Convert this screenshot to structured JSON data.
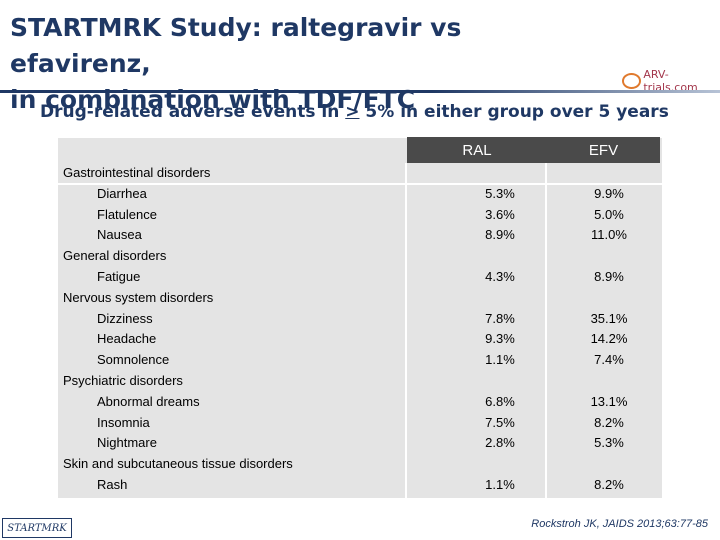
{
  "title_line1": "STARTMRK Study: raltegravir vs efavirenz,",
  "title_line2": "in combination with TDF/FTC",
  "logo_text": "ARV-trials.com",
  "subtitle_pre": "Drug-related adverse events in ",
  "subtitle_u": ">",
  "subtitle_post": " 5% in either group over 5 years",
  "columns": [
    "RAL",
    "EFV"
  ],
  "rows": [
    {
      "label": "Gastrointestinal disorders",
      "kind": "category",
      "ral": "",
      "efv": ""
    },
    {
      "label": "Diarrhea",
      "kind": "item",
      "ral": "5.3%",
      "efv": "9.9%"
    },
    {
      "label": "Flatulence",
      "kind": "item",
      "ral": "3.6%",
      "efv": "5.0%"
    },
    {
      "label": "Nausea",
      "kind": "item",
      "ral": "8.9%",
      "efv": "11.0%"
    },
    {
      "label": "General disorders",
      "kind": "category",
      "ral": "",
      "efv": ""
    },
    {
      "label": "Fatigue",
      "kind": "item",
      "ral": "4.3%",
      "efv": "8.9%"
    },
    {
      "label": "Nervous system disorders",
      "kind": "category",
      "ral": "",
      "efv": ""
    },
    {
      "label": "Dizziness",
      "kind": "item",
      "ral": "7.8%",
      "efv": "35.1%"
    },
    {
      "label": "Headache",
      "kind": "item",
      "ral": "9.3%",
      "efv": "14.2%"
    },
    {
      "label": "Somnolence",
      "kind": "item",
      "ral": "1.1%",
      "efv": "7.4%"
    },
    {
      "label": "Psychiatric disorders",
      "kind": "category",
      "ral": "",
      "efv": ""
    },
    {
      "label": "Abnormal dreams",
      "kind": "item",
      "ral": "6.8%",
      "efv": "13.1%"
    },
    {
      "label": "Insomnia",
      "kind": "item",
      "ral": "7.5%",
      "efv": "8.2%"
    },
    {
      "label": "Nightmare",
      "kind": "item",
      "ral": "2.8%",
      "efv": "5.3%"
    },
    {
      "label": "Skin and subcutaneous tissue disorders",
      "kind": "category",
      "ral": "",
      "efv": ""
    },
    {
      "label": "Rash",
      "kind": "item",
      "ral": "1.1%",
      "efv": "8.2%"
    }
  ],
  "footer_left": "STARTMRK",
  "footer_right": "Rockstroh JK, JAIDS 2013;63:77-85",
  "colors": {
    "title": "#1f3864",
    "header_bg": "#4a4a4a",
    "table_bg": "#e4e4e4"
  }
}
